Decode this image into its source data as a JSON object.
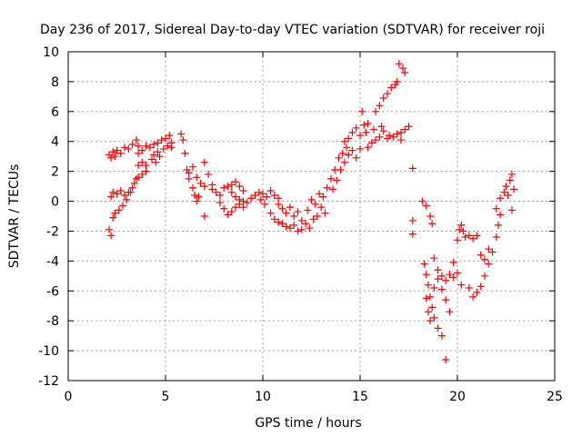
{
  "chart_data": {
    "type": "scatter",
    "title": "Day 236 of 2017, Sidereal Day-to-day VTEC variation (SDTVAR) for receiver roji",
    "xlabel": "GPS time / hours",
    "ylabel": "SDTVAR / TECUs",
    "xlim": [
      0,
      25
    ],
    "ylim": [
      -12,
      10
    ],
    "xticks": [
      0,
      5,
      10,
      15,
      20,
      25
    ],
    "yticks": [
      -12,
      -10,
      -8,
      -6,
      -4,
      -2,
      0,
      2,
      4,
      6,
      8,
      10
    ],
    "grid": true,
    "marker": "+",
    "color": "#ff0000",
    "series": [
      {
        "points": [
          [
            2.1,
            3.1
          ],
          [
            2.2,
            2.9
          ],
          [
            2.3,
            3.3
          ],
          [
            2.4,
            3.0
          ],
          [
            2.5,
            3.4
          ],
          [
            2.7,
            3.2
          ],
          [
            2.9,
            3.6
          ],
          [
            3.1,
            3.5
          ],
          [
            3.3,
            3.8
          ],
          [
            3.5,
            4.1
          ],
          [
            3.6,
            3.7
          ],
          [
            2.1,
            -1.9
          ],
          [
            2.2,
            -2.3
          ],
          [
            2.3,
            -1.1
          ],
          [
            2.4,
            -0.8
          ],
          [
            2.6,
            -0.6
          ],
          [
            2.8,
            -0.3
          ],
          [
            3.0,
            0.1
          ],
          [
            3.2,
            0.6
          ],
          [
            3.4,
            1.2
          ],
          [
            3.6,
            1.6
          ],
          [
            3.8,
            1.8
          ],
          [
            4.0,
            2.0
          ],
          [
            2.2,
            0.3
          ],
          [
            2.3,
            0.6
          ],
          [
            2.5,
            0.5
          ],
          [
            2.7,
            0.7
          ],
          [
            2.9,
            0.4
          ],
          [
            3.1,
            0.6
          ],
          [
            3.3,
            0.9
          ],
          [
            3.5,
            1.5
          ],
          [
            3.6,
            2.4
          ],
          [
            3.8,
            2.6
          ],
          [
            4.0,
            2.4
          ],
          [
            3.6,
            3.2
          ],
          [
            3.8,
            3.4
          ],
          [
            4.0,
            3.7
          ],
          [
            4.2,
            3.6
          ],
          [
            4.4,
            3.8
          ],
          [
            4.6,
            3.9
          ],
          [
            4.8,
            4.1
          ],
          [
            5.0,
            4.2
          ],
          [
            5.2,
            4.4
          ],
          [
            5.3,
            3.6
          ],
          [
            4.3,
            2.8
          ],
          [
            4.4,
            3.1
          ],
          [
            4.5,
            2.6
          ],
          [
            4.6,
            3.3
          ],
          [
            4.7,
            3.0
          ],
          [
            4.9,
            3.5
          ],
          [
            5.1,
            3.7
          ],
          [
            5.3,
            3.9
          ],
          [
            5.8,
            4.5
          ],
          [
            5.9,
            4.1
          ],
          [
            6.0,
            3.2
          ],
          [
            6.1,
            2.1
          ],
          [
            6.2,
            1.9
          ],
          [
            6.4,
            2.3
          ],
          [
            6.6,
            1.6
          ],
          [
            6.8,
            1.2
          ],
          [
            7.0,
            1.0
          ],
          [
            6.2,
            1.5
          ],
          [
            6.4,
            0.9
          ],
          [
            6.5,
            0.4
          ],
          [
            6.6,
            0.0
          ],
          [
            6.7,
            0.3
          ],
          [
            7.0,
            -1.0
          ],
          [
            7.0,
            2.6
          ],
          [
            7.2,
            1.8
          ],
          [
            7.4,
            1.1
          ],
          [
            7.4,
            0.8
          ],
          [
            7.6,
            0.6
          ],
          [
            7.8,
            0.4
          ],
          [
            8.0,
            0.9
          ],
          [
            8.2,
            1.0
          ],
          [
            8.4,
            1.1
          ],
          [
            8.6,
            1.3
          ],
          [
            8.8,
            1.0
          ],
          [
            9.0,
            0.7
          ],
          [
            7.8,
            -0.1
          ],
          [
            8.0,
            -0.5
          ],
          [
            8.2,
            -0.9
          ],
          [
            8.4,
            -0.7
          ],
          [
            8.6,
            -0.4
          ],
          [
            8.8,
            -0.2
          ],
          [
            9.0,
            -0.4
          ],
          [
            8.4,
            0.6
          ],
          [
            8.6,
            0.3
          ],
          [
            8.8,
            0.1
          ],
          [
            9.0,
            0.0
          ],
          [
            9.2,
            -0.1
          ],
          [
            9.4,
            0.2
          ],
          [
            9.6,
            0.4
          ],
          [
            9.8,
            0.6
          ],
          [
            10.0,
            0.5
          ],
          [
            10.2,
            0.3
          ],
          [
            10.4,
            0.7
          ],
          [
            10.6,
            0.4
          ],
          [
            10.8,
            0.2
          ],
          [
            9.9,
            0.1
          ],
          [
            10.1,
            -0.2
          ],
          [
            10.4,
            -0.8
          ],
          [
            10.6,
            -1.2
          ],
          [
            10.8,
            -1.4
          ],
          [
            11.0,
            -1.5
          ],
          [
            11.2,
            -1.7
          ],
          [
            11.4,
            -1.8
          ],
          [
            11.6,
            -1.6
          ],
          [
            11.8,
            -2.0
          ],
          [
            12.0,
            -1.9
          ],
          [
            10.8,
            -0.2
          ],
          [
            11.0,
            -0.5
          ],
          [
            11.2,
            -0.8
          ],
          [
            11.4,
            -0.4
          ],
          [
            11.6,
            -1.0
          ],
          [
            11.8,
            -0.7
          ],
          [
            12.0,
            -1.3
          ],
          [
            12.2,
            -1.5
          ],
          [
            12.4,
            -1.8
          ],
          [
            12.6,
            -1.2
          ],
          [
            12.8,
            -1.0
          ],
          [
            13.0,
            -0.4
          ],
          [
            12.3,
            -0.6
          ],
          [
            12.5,
            0.1
          ],
          [
            12.7,
            -0.2
          ],
          [
            12.9,
            0.5
          ],
          [
            13.1,
            0.3
          ],
          [
            13.2,
            -0.8
          ],
          [
            13.3,
            0.9
          ],
          [
            13.5,
            1.5
          ],
          [
            13.7,
            2.1
          ],
          [
            13.9,
            2.9
          ],
          [
            14.1,
            3.2
          ],
          [
            14.3,
            3.6
          ],
          [
            13.6,
            0.8
          ],
          [
            13.8,
            1.4
          ],
          [
            14.0,
            2.1
          ],
          [
            14.2,
            2.6
          ],
          [
            14.4,
            3.1
          ],
          [
            14.6,
            3.4
          ],
          [
            14.8,
            2.9
          ],
          [
            15.0,
            3.5
          ],
          [
            14.2,
            4.0
          ],
          [
            14.4,
            4.2
          ],
          [
            14.6,
            4.6
          ],
          [
            14.8,
            4.9
          ],
          [
            15.0,
            4.4
          ],
          [
            15.1,
            6.0
          ],
          [
            15.2,
            5.1
          ],
          [
            15.3,
            4.6
          ],
          [
            15.4,
            5.2
          ],
          [
            15.4,
            3.6
          ],
          [
            15.6,
            3.9
          ],
          [
            15.8,
            4.1
          ],
          [
            16.0,
            4.3
          ],
          [
            16.2,
            4.7
          ],
          [
            16.4,
            4.2
          ],
          [
            15.7,
            4.8
          ],
          [
            16.1,
            5.0
          ],
          [
            15.8,
            6.0
          ],
          [
            16.0,
            6.4
          ],
          [
            16.2,
            6.9
          ],
          [
            16.4,
            7.2
          ],
          [
            16.6,
            7.6
          ],
          [
            16.8,
            7.8
          ],
          [
            16.9,
            8.0
          ],
          [
            16.5,
            4.4
          ],
          [
            16.7,
            4.3
          ],
          [
            16.9,
            4.5
          ],
          [
            17.1,
            4.6
          ],
          [
            17.3,
            4.8
          ],
          [
            17.5,
            5.0
          ],
          [
            17.1,
            4.1
          ],
          [
            17.0,
            9.2
          ],
          [
            17.2,
            8.9
          ],
          [
            17.3,
            8.6
          ],
          [
            17.7,
            2.2
          ],
          [
            17.7,
            -1.3
          ],
          [
            17.7,
            -2.2
          ],
          [
            18.2,
            0.0
          ],
          [
            18.4,
            -0.3
          ],
          [
            18.6,
            -1.0
          ],
          [
            18.7,
            -1.5
          ],
          [
            18.3,
            -4.2
          ],
          [
            18.4,
            -4.9
          ],
          [
            18.5,
            -5.6
          ],
          [
            18.6,
            -6.4
          ],
          [
            18.7,
            -7.1
          ],
          [
            18.8,
            -7.8
          ],
          [
            19.0,
            -8.5
          ],
          [
            19.2,
            -9.0
          ],
          [
            18.4,
            -6.5
          ],
          [
            18.5,
            -7.4
          ],
          [
            18.6,
            -8.0
          ],
          [
            18.8,
            -5.8
          ],
          [
            19.0,
            -5.2
          ],
          [
            19.2,
            -5.9
          ],
          [
            19.4,
            -6.6
          ],
          [
            19.6,
            -7.4
          ],
          [
            19.4,
            -10.6
          ],
          [
            18.8,
            -3.8
          ],
          [
            19.0,
            -4.6
          ],
          [
            19.2,
            -5.0
          ],
          [
            19.4,
            -5.3
          ],
          [
            19.6,
            -4.9
          ],
          [
            19.8,
            -5.1
          ],
          [
            20.0,
            -4.8
          ],
          [
            20.2,
            -5.6
          ],
          [
            19.8,
            -4.1
          ],
          [
            20.0,
            -2.6
          ],
          [
            20.1,
            -1.9
          ],
          [
            20.2,
            -1.6
          ],
          [
            20.3,
            -2.0
          ],
          [
            20.4,
            -2.4
          ],
          [
            20.6,
            -2.3
          ],
          [
            20.8,
            -2.5
          ],
          [
            21.0,
            -2.3
          ],
          [
            20.6,
            -5.8
          ],
          [
            20.8,
            -6.4
          ],
          [
            21.0,
            -6.1
          ],
          [
            21.2,
            -5.7
          ],
          [
            21.4,
            -5.0
          ],
          [
            21.6,
            -4.2
          ],
          [
            21.8,
            -3.4
          ],
          [
            22.0,
            -2.4
          ],
          [
            22.1,
            -1.6
          ],
          [
            22.2,
            -0.9
          ],
          [
            21.2,
            -3.6
          ],
          [
            21.4,
            -3.9
          ],
          [
            21.6,
            -3.2
          ],
          [
            22.0,
            -0.5
          ],
          [
            22.2,
            0.2
          ],
          [
            22.4,
            0.6
          ],
          [
            22.5,
            1.0
          ],
          [
            22.6,
            0.4
          ],
          [
            22.7,
            1.4
          ],
          [
            22.8,
            1.8
          ],
          [
            22.9,
            0.8
          ],
          [
            22.8,
            -0.6
          ]
        ]
      }
    ]
  }
}
